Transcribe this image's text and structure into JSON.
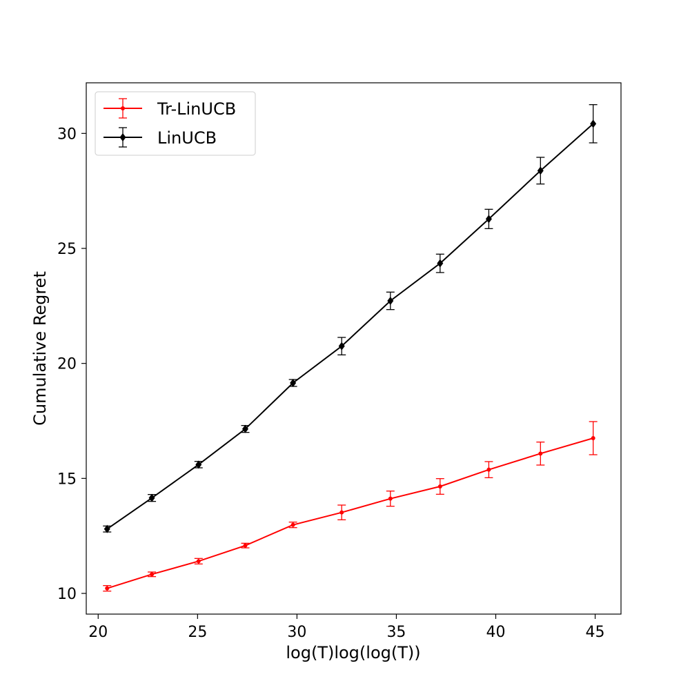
{
  "chart_data": {
    "type": "line",
    "xlabel": "log(T)log(log(T))",
    "ylabel": "Cumulative Regret",
    "xlim": [
      19.4,
      46.3
    ],
    "ylim": [
      9.1,
      32.2
    ],
    "xticks": [
      20,
      25,
      30,
      35,
      40,
      45
    ],
    "yticks": [
      10,
      15,
      20,
      25,
      30
    ],
    "x": [
      20.45,
      22.7,
      25.05,
      27.4,
      29.8,
      32.25,
      34.7,
      37.2,
      39.65,
      42.25,
      44.9
    ],
    "grid": false,
    "legend_position": "upper-left",
    "series": [
      {
        "name": "Tr-LinUCB",
        "color": "#ff0000",
        "marker": "dot",
        "values": [
          10.22,
          10.83,
          11.4,
          12.08,
          12.98,
          13.52,
          14.12,
          14.65,
          15.38,
          16.08,
          16.75
        ],
        "errors": [
          0.12,
          0.1,
          0.12,
          0.1,
          0.12,
          0.32,
          0.33,
          0.34,
          0.35,
          0.5,
          0.72
        ]
      },
      {
        "name": "LinUCB",
        "color": "#000000",
        "marker": "diamond",
        "values": [
          12.8,
          14.15,
          15.6,
          17.15,
          19.15,
          20.75,
          22.72,
          24.35,
          26.28,
          28.38,
          30.42
        ],
        "errors": [
          0.13,
          0.15,
          0.14,
          0.15,
          0.15,
          0.38,
          0.38,
          0.4,
          0.42,
          0.58,
          0.83
        ]
      }
    ]
  }
}
